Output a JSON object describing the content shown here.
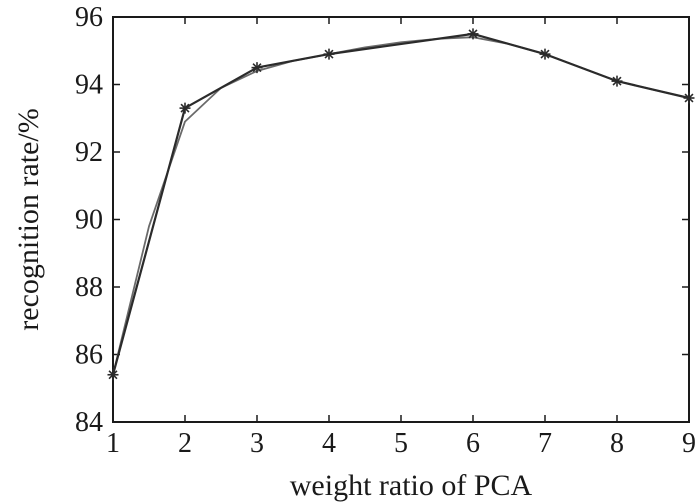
{
  "chart_data": {
    "type": "line",
    "title": "",
    "xlabel": "weight ratio of PCA",
    "ylabel": "recognition rate/%",
    "xlim": [
      1,
      9
    ],
    "ylim": [
      84,
      96
    ],
    "x_ticks": [
      1,
      2,
      3,
      4,
      5,
      6,
      7,
      8,
      9
    ],
    "y_ticks": [
      84,
      86,
      88,
      90,
      92,
      94,
      96
    ],
    "grid": false,
    "legend": "none",
    "series": [
      {
        "marker": "star",
        "color": "#2b2b2b",
        "x": [
          1,
          2,
          3,
          4,
          6,
          7,
          8,
          9
        ],
        "y": [
          85.4,
          93.3,
          94.5,
          94.9,
          95.5,
          94.9,
          94.1,
          93.6
        ]
      },
      {
        "marker": "none",
        "color": "#6a6a6a",
        "x": [
          1,
          1.5,
          2,
          2.5,
          3,
          3.5,
          4,
          4.5,
          5,
          5.5,
          6,
          6.5,
          7,
          7.5,
          8,
          8.5,
          9
        ],
        "y": [
          85.4,
          89.8,
          92.9,
          93.9,
          94.4,
          94.7,
          94.9,
          95.1,
          95.25,
          95.35,
          95.4,
          95.2,
          94.9,
          94.5,
          94.1,
          93.85,
          93.6
        ]
      }
    ]
  }
}
